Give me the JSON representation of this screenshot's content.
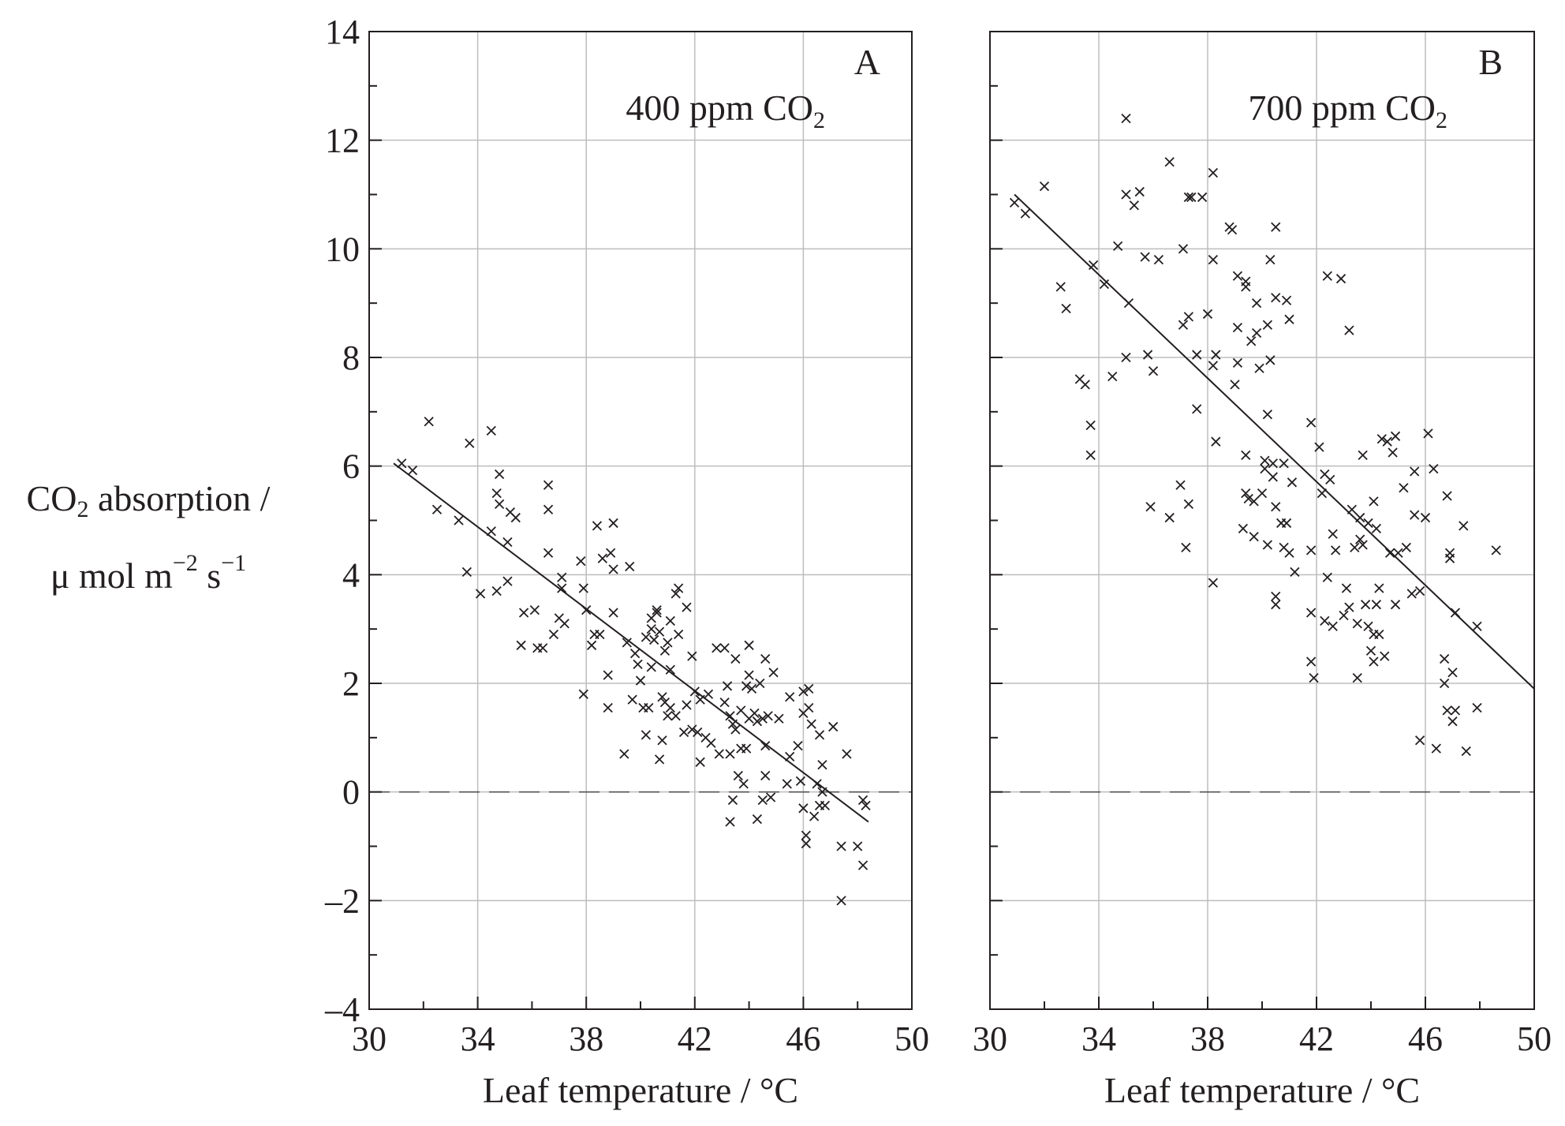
{
  "chart_data": {
    "type": "scatter",
    "ylabel": {
      "main": "CO",
      "sub": "2",
      "rest": " absorption /",
      "line2_a": "μ mol m",
      "line2_sup1": "−2",
      "line2_b": " s",
      "line2_sup2": "−1"
    },
    "xlabel": "Leaf temperature / °C",
    "x_ticks": [
      "30",
      "34",
      "38",
      "42",
      "46",
      "50"
    ],
    "y_ticks": [
      "14",
      "12",
      "10",
      "8",
      "6",
      "4",
      "2",
      "0",
      "–2",
      "–4"
    ],
    "xlim": [
      30,
      50
    ],
    "ylim": [
      -4,
      14
    ],
    "grid": true,
    "reference_line": {
      "y": 0,
      "style": "dashed"
    },
    "panels": [
      {
        "letter": "A",
        "annotation": {
          "pre": "400 ppm CO",
          "sub": "2"
        },
        "trend_line": {
          "x": [
            30.9,
            48.4
          ],
          "y": [
            6.05,
            -0.55
          ]
        },
        "points": [
          [
            31.2,
            6.05
          ],
          [
            31.6,
            5.92
          ],
          [
            32.2,
            6.82
          ],
          [
            32.5,
            5.2
          ],
          [
            33.3,
            5.0
          ],
          [
            33.6,
            4.05
          ],
          [
            33.7,
            6.42
          ],
          [
            34.1,
            3.65
          ],
          [
            34.5,
            6.65
          ],
          [
            34.5,
            4.8
          ],
          [
            34.7,
            5.5
          ],
          [
            34.7,
            3.7
          ],
          [
            34.8,
            5.3
          ],
          [
            34.8,
            5.85
          ],
          [
            35.1,
            4.6
          ],
          [
            35.1,
            3.88
          ],
          [
            35.2,
            5.15
          ],
          [
            35.4,
            5.05
          ],
          [
            35.6,
            2.7
          ],
          [
            35.7,
            3.3
          ],
          [
            36.1,
            3.35
          ],
          [
            36.2,
            2.65
          ],
          [
            36.4,
            2.65
          ],
          [
            36.6,
            5.65
          ],
          [
            36.6,
            5.2
          ],
          [
            36.6,
            4.4
          ],
          [
            36.8,
            2.9
          ],
          [
            37.0,
            3.2
          ],
          [
            37.1,
            3.75
          ],
          [
            37.1,
            3.95
          ],
          [
            37.2,
            3.1
          ],
          [
            37.8,
            4.25
          ],
          [
            37.9,
            3.75
          ],
          [
            37.9,
            1.8
          ],
          [
            38.0,
            3.35
          ],
          [
            38.2,
            2.7
          ],
          [
            38.3,
            2.9
          ],
          [
            38.4,
            4.9
          ],
          [
            38.5,
            2.9
          ],
          [
            38.6,
            4.3
          ],
          [
            38.8,
            2.15
          ],
          [
            38.8,
            1.55
          ],
          [
            38.9,
            4.4
          ],
          [
            39.0,
            4.95
          ],
          [
            39.0,
            4.1
          ],
          [
            39.0,
            3.3
          ],
          [
            39.4,
            0.7
          ],
          [
            39.5,
            2.75
          ],
          [
            39.6,
            4.15
          ],
          [
            39.7,
            1.7
          ],
          [
            39.8,
            2.55
          ],
          [
            39.9,
            2.35
          ],
          [
            40.0,
            2.05
          ],
          [
            40.1,
            1.55
          ],
          [
            40.2,
            1.05
          ],
          [
            40.2,
            2.85
          ],
          [
            40.3,
            1.55
          ],
          [
            40.4,
            3.0
          ],
          [
            40.4,
            2.3
          ],
          [
            40.4,
            3.2
          ],
          [
            40.5,
            2.8
          ],
          [
            40.6,
            3.3
          ],
          [
            40.6,
            3.35
          ],
          [
            40.7,
            0.6
          ],
          [
            40.7,
            2.95
          ],
          [
            40.8,
            0.95
          ],
          [
            40.8,
            1.75
          ],
          [
            40.9,
            2.6
          ],
          [
            40.9,
            1.65
          ],
          [
            41.0,
            2.75
          ],
          [
            41.0,
            1.4
          ],
          [
            41.1,
            3.15
          ],
          [
            41.1,
            1.55
          ],
          [
            41.1,
            2.25
          ],
          [
            41.3,
            1.4
          ],
          [
            41.3,
            3.65
          ],
          [
            41.4,
            3.75
          ],
          [
            41.4,
            2.9
          ],
          [
            41.6,
            1.1
          ],
          [
            41.7,
            3.4
          ],
          [
            41.7,
            1.6
          ],
          [
            41.9,
            2.5
          ],
          [
            41.9,
            1.15
          ],
          [
            42.0,
            1.85
          ],
          [
            42.1,
            1.1
          ],
          [
            42.2,
            0.55
          ],
          [
            42.2,
            1.7
          ],
          [
            42.4,
            1.0
          ],
          [
            42.5,
            1.8
          ],
          [
            42.6,
            0.9
          ],
          [
            42.8,
            2.65
          ],
          [
            42.9,
            0.7
          ],
          [
            43.1,
            2.65
          ],
          [
            43.1,
            1.65
          ],
          [
            43.2,
            1.95
          ],
          [
            43.3,
            0.7
          ],
          [
            43.3,
            1.4
          ],
          [
            43.3,
            -0.55
          ],
          [
            43.4,
            -0.15
          ],
          [
            43.4,
            1.25
          ],
          [
            43.5,
            2.45
          ],
          [
            43.5,
            1.15
          ],
          [
            43.6,
            0.3
          ],
          [
            43.7,
            1.5
          ],
          [
            43.7,
            0.8
          ],
          [
            43.8,
            0.15
          ],
          [
            43.9,
            1.95
          ],
          [
            43.9,
            0.8
          ],
          [
            44.0,
            2.7
          ],
          [
            44.0,
            2.15
          ],
          [
            44.0,
            1.35
          ],
          [
            44.1,
            1.9
          ],
          [
            44.2,
            1.45
          ],
          [
            44.3,
            1.3
          ],
          [
            44.3,
            -0.5
          ],
          [
            44.4,
            2.0
          ],
          [
            44.5,
            1.35
          ],
          [
            44.5,
            -0.15
          ],
          [
            44.6,
            2.45
          ],
          [
            44.6,
            0.85
          ],
          [
            44.6,
            0.3
          ],
          [
            44.7,
            1.4
          ],
          [
            44.8,
            -0.1
          ],
          [
            44.9,
            2.2
          ],
          [
            45.1,
            1.35
          ],
          [
            45.4,
            0.15
          ],
          [
            45.5,
            1.75
          ],
          [
            45.5,
            0.65
          ],
          [
            45.8,
            0.85
          ],
          [
            45.9,
            0.2
          ],
          [
            46.0,
            1.85
          ],
          [
            46.0,
            1.45
          ],
          [
            46.0,
            -0.3
          ],
          [
            46.1,
            -0.95
          ],
          [
            46.1,
            -0.8
          ],
          [
            46.2,
            1.9
          ],
          [
            46.2,
            1.55
          ],
          [
            46.3,
            1.25
          ],
          [
            46.4,
            -0.45
          ],
          [
            46.5,
            0.15
          ],
          [
            46.6,
            -0.25
          ],
          [
            46.6,
            1.05
          ],
          [
            46.7,
            0.5
          ],
          [
            46.7,
            0.0
          ],
          [
            46.8,
            -0.25
          ],
          [
            47.1,
            1.2
          ],
          [
            47.4,
            -1.0
          ],
          [
            47.4,
            -2.0
          ],
          [
            47.6,
            0.7
          ],
          [
            48.0,
            -1.0
          ],
          [
            48.2,
            -0.15
          ],
          [
            48.2,
            -1.35
          ],
          [
            48.3,
            -0.25
          ]
        ]
      },
      {
        "letter": "B",
        "annotation": {
          "pre": "700 ppm CO",
          "sub": "2"
        },
        "trend_line": {
          "x": [
            30.9,
            50.0
          ],
          "y": [
            11.0,
            1.9
          ]
        },
        "points": [
          [
            30.9,
            10.85
          ],
          [
            31.3,
            10.65
          ],
          [
            32.0,
            11.15
          ],
          [
            32.6,
            9.3
          ],
          [
            32.8,
            8.9
          ],
          [
            33.3,
            7.6
          ],
          [
            33.5,
            7.5
          ],
          [
            33.7,
            6.75
          ],
          [
            33.7,
            6.2
          ],
          [
            33.8,
            9.7
          ],
          [
            34.2,
            9.35
          ],
          [
            34.5,
            7.65
          ],
          [
            34.7,
            10.05
          ],
          [
            35.0,
            12.4
          ],
          [
            35.0,
            11.0
          ],
          [
            35.0,
            8.0
          ],
          [
            35.1,
            9.0
          ],
          [
            35.3,
            10.8
          ],
          [
            35.5,
            11.05
          ],
          [
            35.7,
            9.85
          ],
          [
            35.8,
            8.05
          ],
          [
            35.9,
            5.25
          ],
          [
            36.0,
            7.75
          ],
          [
            36.2,
            9.8
          ],
          [
            36.6,
            11.6
          ],
          [
            36.6,
            5.05
          ],
          [
            37.0,
            5.65
          ],
          [
            37.1,
            8.6
          ],
          [
            37.1,
            10.0
          ],
          [
            37.2,
            4.5
          ],
          [
            37.3,
            5.3
          ],
          [
            37.3,
            8.75
          ],
          [
            37.3,
            10.95
          ],
          [
            37.4,
            10.95
          ],
          [
            37.6,
            8.05
          ],
          [
            37.6,
            7.05
          ],
          [
            37.8,
            10.95
          ],
          [
            38.0,
            8.8
          ],
          [
            38.2,
            11.4
          ],
          [
            38.2,
            9.8
          ],
          [
            38.2,
            7.85
          ],
          [
            38.2,
            3.85
          ],
          [
            38.3,
            6.45
          ],
          [
            38.3,
            8.05
          ],
          [
            38.8,
            10.4
          ],
          [
            38.9,
            10.35
          ],
          [
            39.0,
            7.5
          ],
          [
            39.1,
            9.5
          ],
          [
            39.1,
            8.55
          ],
          [
            39.1,
            7.9
          ],
          [
            39.3,
            4.85
          ],
          [
            39.4,
            9.4
          ],
          [
            39.4,
            9.3
          ],
          [
            39.4,
            6.2
          ],
          [
            39.4,
            5.5
          ],
          [
            39.5,
            5.4
          ],
          [
            39.6,
            8.3
          ],
          [
            39.7,
            5.35
          ],
          [
            39.7,
            4.7
          ],
          [
            39.8,
            8.45
          ],
          [
            39.8,
            9.0
          ],
          [
            39.9,
            7.8
          ],
          [
            40.0,
            5.5
          ],
          [
            40.1,
            5.95
          ],
          [
            40.1,
            6.1
          ],
          [
            40.2,
            4.55
          ],
          [
            40.2,
            8.6
          ],
          [
            40.2,
            6.95
          ],
          [
            40.3,
            7.95
          ],
          [
            40.3,
            9.8
          ],
          [
            40.4,
            6.05
          ],
          [
            40.4,
            5.8
          ],
          [
            40.5,
            10.4
          ],
          [
            40.5,
            9.1
          ],
          [
            40.5,
            5.25
          ],
          [
            40.5,
            3.6
          ],
          [
            40.5,
            3.45
          ],
          [
            40.7,
            4.95
          ],
          [
            40.8,
            6.05
          ],
          [
            40.8,
            4.5
          ],
          [
            40.9,
            9.05
          ],
          [
            40.9,
            4.95
          ],
          [
            41.0,
            4.4
          ],
          [
            41.0,
            8.7
          ],
          [
            41.1,
            5.7
          ],
          [
            41.2,
            4.05
          ],
          [
            41.8,
            6.8
          ],
          [
            41.8,
            4.45
          ],
          [
            41.8,
            3.3
          ],
          [
            41.8,
            2.4
          ],
          [
            41.9,
            2.1
          ],
          [
            42.1,
            6.35
          ],
          [
            42.2,
            5.5
          ],
          [
            42.3,
            5.85
          ],
          [
            42.3,
            3.15
          ],
          [
            42.4,
            3.95
          ],
          [
            42.4,
            9.5
          ],
          [
            42.5,
            5.75
          ],
          [
            42.6,
            4.75
          ],
          [
            42.6,
            3.05
          ],
          [
            42.7,
            4.45
          ],
          [
            42.9,
            9.45
          ],
          [
            43.0,
            3.25
          ],
          [
            43.1,
            3.75
          ],
          [
            43.2,
            3.4
          ],
          [
            43.2,
            8.5
          ],
          [
            43.3,
            5.2
          ],
          [
            43.4,
            4.5
          ],
          [
            43.5,
            3.1
          ],
          [
            43.5,
            2.1
          ],
          [
            43.6,
            5.05
          ],
          [
            43.6,
            4.65
          ],
          [
            43.7,
            6.2
          ],
          [
            43.7,
            4.55
          ],
          [
            43.8,
            3.45
          ],
          [
            43.9,
            3.05
          ],
          [
            43.9,
            4.95
          ],
          [
            44.0,
            2.6
          ],
          [
            44.1,
            2.9
          ],
          [
            44.1,
            2.4
          ],
          [
            44.1,
            5.35
          ],
          [
            44.2,
            4.85
          ],
          [
            44.2,
            3.45
          ],
          [
            44.3,
            3.75
          ],
          [
            44.3,
            2.9
          ],
          [
            44.4,
            6.5
          ],
          [
            44.5,
            2.5
          ],
          [
            44.6,
            6.45
          ],
          [
            44.7,
            4.4
          ],
          [
            44.8,
            6.25
          ],
          [
            44.9,
            6.55
          ],
          [
            44.9,
            3.45
          ],
          [
            45.0,
            4.4
          ],
          [
            45.2,
            5.6
          ],
          [
            45.3,
            4.5
          ],
          [
            45.5,
            3.65
          ],
          [
            45.6,
            5.9
          ],
          [
            45.6,
            5.1
          ],
          [
            45.8,
            0.95
          ],
          [
            45.8,
            3.7
          ],
          [
            46.0,
            5.05
          ],
          [
            46.1,
            6.6
          ],
          [
            46.3,
            5.95
          ],
          [
            46.4,
            0.8
          ],
          [
            46.7,
            2.45
          ],
          [
            46.7,
            2.0
          ],
          [
            46.8,
            5.45
          ],
          [
            46.8,
            1.5
          ],
          [
            46.9,
            4.4
          ],
          [
            46.9,
            4.3
          ],
          [
            47.0,
            2.2
          ],
          [
            47.0,
            1.3
          ],
          [
            47.1,
            3.3
          ],
          [
            47.1,
            1.5
          ],
          [
            47.4,
            4.9
          ],
          [
            47.5,
            0.75
          ],
          [
            47.9,
            3.05
          ],
          [
            47.9,
            1.55
          ],
          [
            48.6,
            4.45
          ]
        ]
      }
    ]
  }
}
